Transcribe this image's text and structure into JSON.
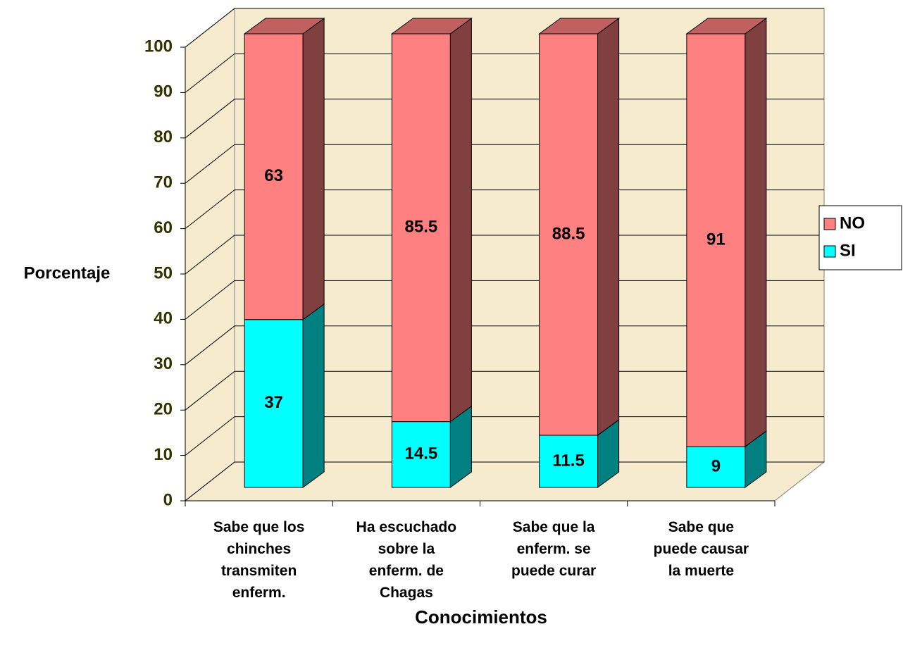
{
  "chart_data": {
    "type": "bar3d_stacked",
    "x_label": "Conocimientos",
    "y_label": "Porcentaje",
    "categories": [
      [
        "Sabe que los",
        "chinches",
        "transmiten",
        "enferm."
      ],
      [
        "Ha escuchado",
        "sobre la",
        "enferm. de",
        "Chagas"
      ],
      [
        "Sabe que la",
        "enferm. se",
        "puede curar"
      ],
      [
        "Sabe que",
        "puede causar",
        "la muerte"
      ]
    ],
    "series": [
      {
        "name": "SI",
        "color": "#00FFFF",
        "side": "#008080",
        "top": "#00C0C0",
        "values": [
          37,
          14.5,
          11.5,
          9
        ]
      },
      {
        "name": "NO",
        "color": "#FF8080",
        "side": "#804040",
        "top": "#C06060",
        "values": [
          63,
          85.5,
          88.5,
          91
        ]
      }
    ],
    "ylim": [
      0,
      100
    ],
    "yticks": [
      0,
      10,
      20,
      30,
      40,
      50,
      60,
      70,
      80,
      90,
      100
    ],
    "grid": true,
    "legend": "right"
  }
}
